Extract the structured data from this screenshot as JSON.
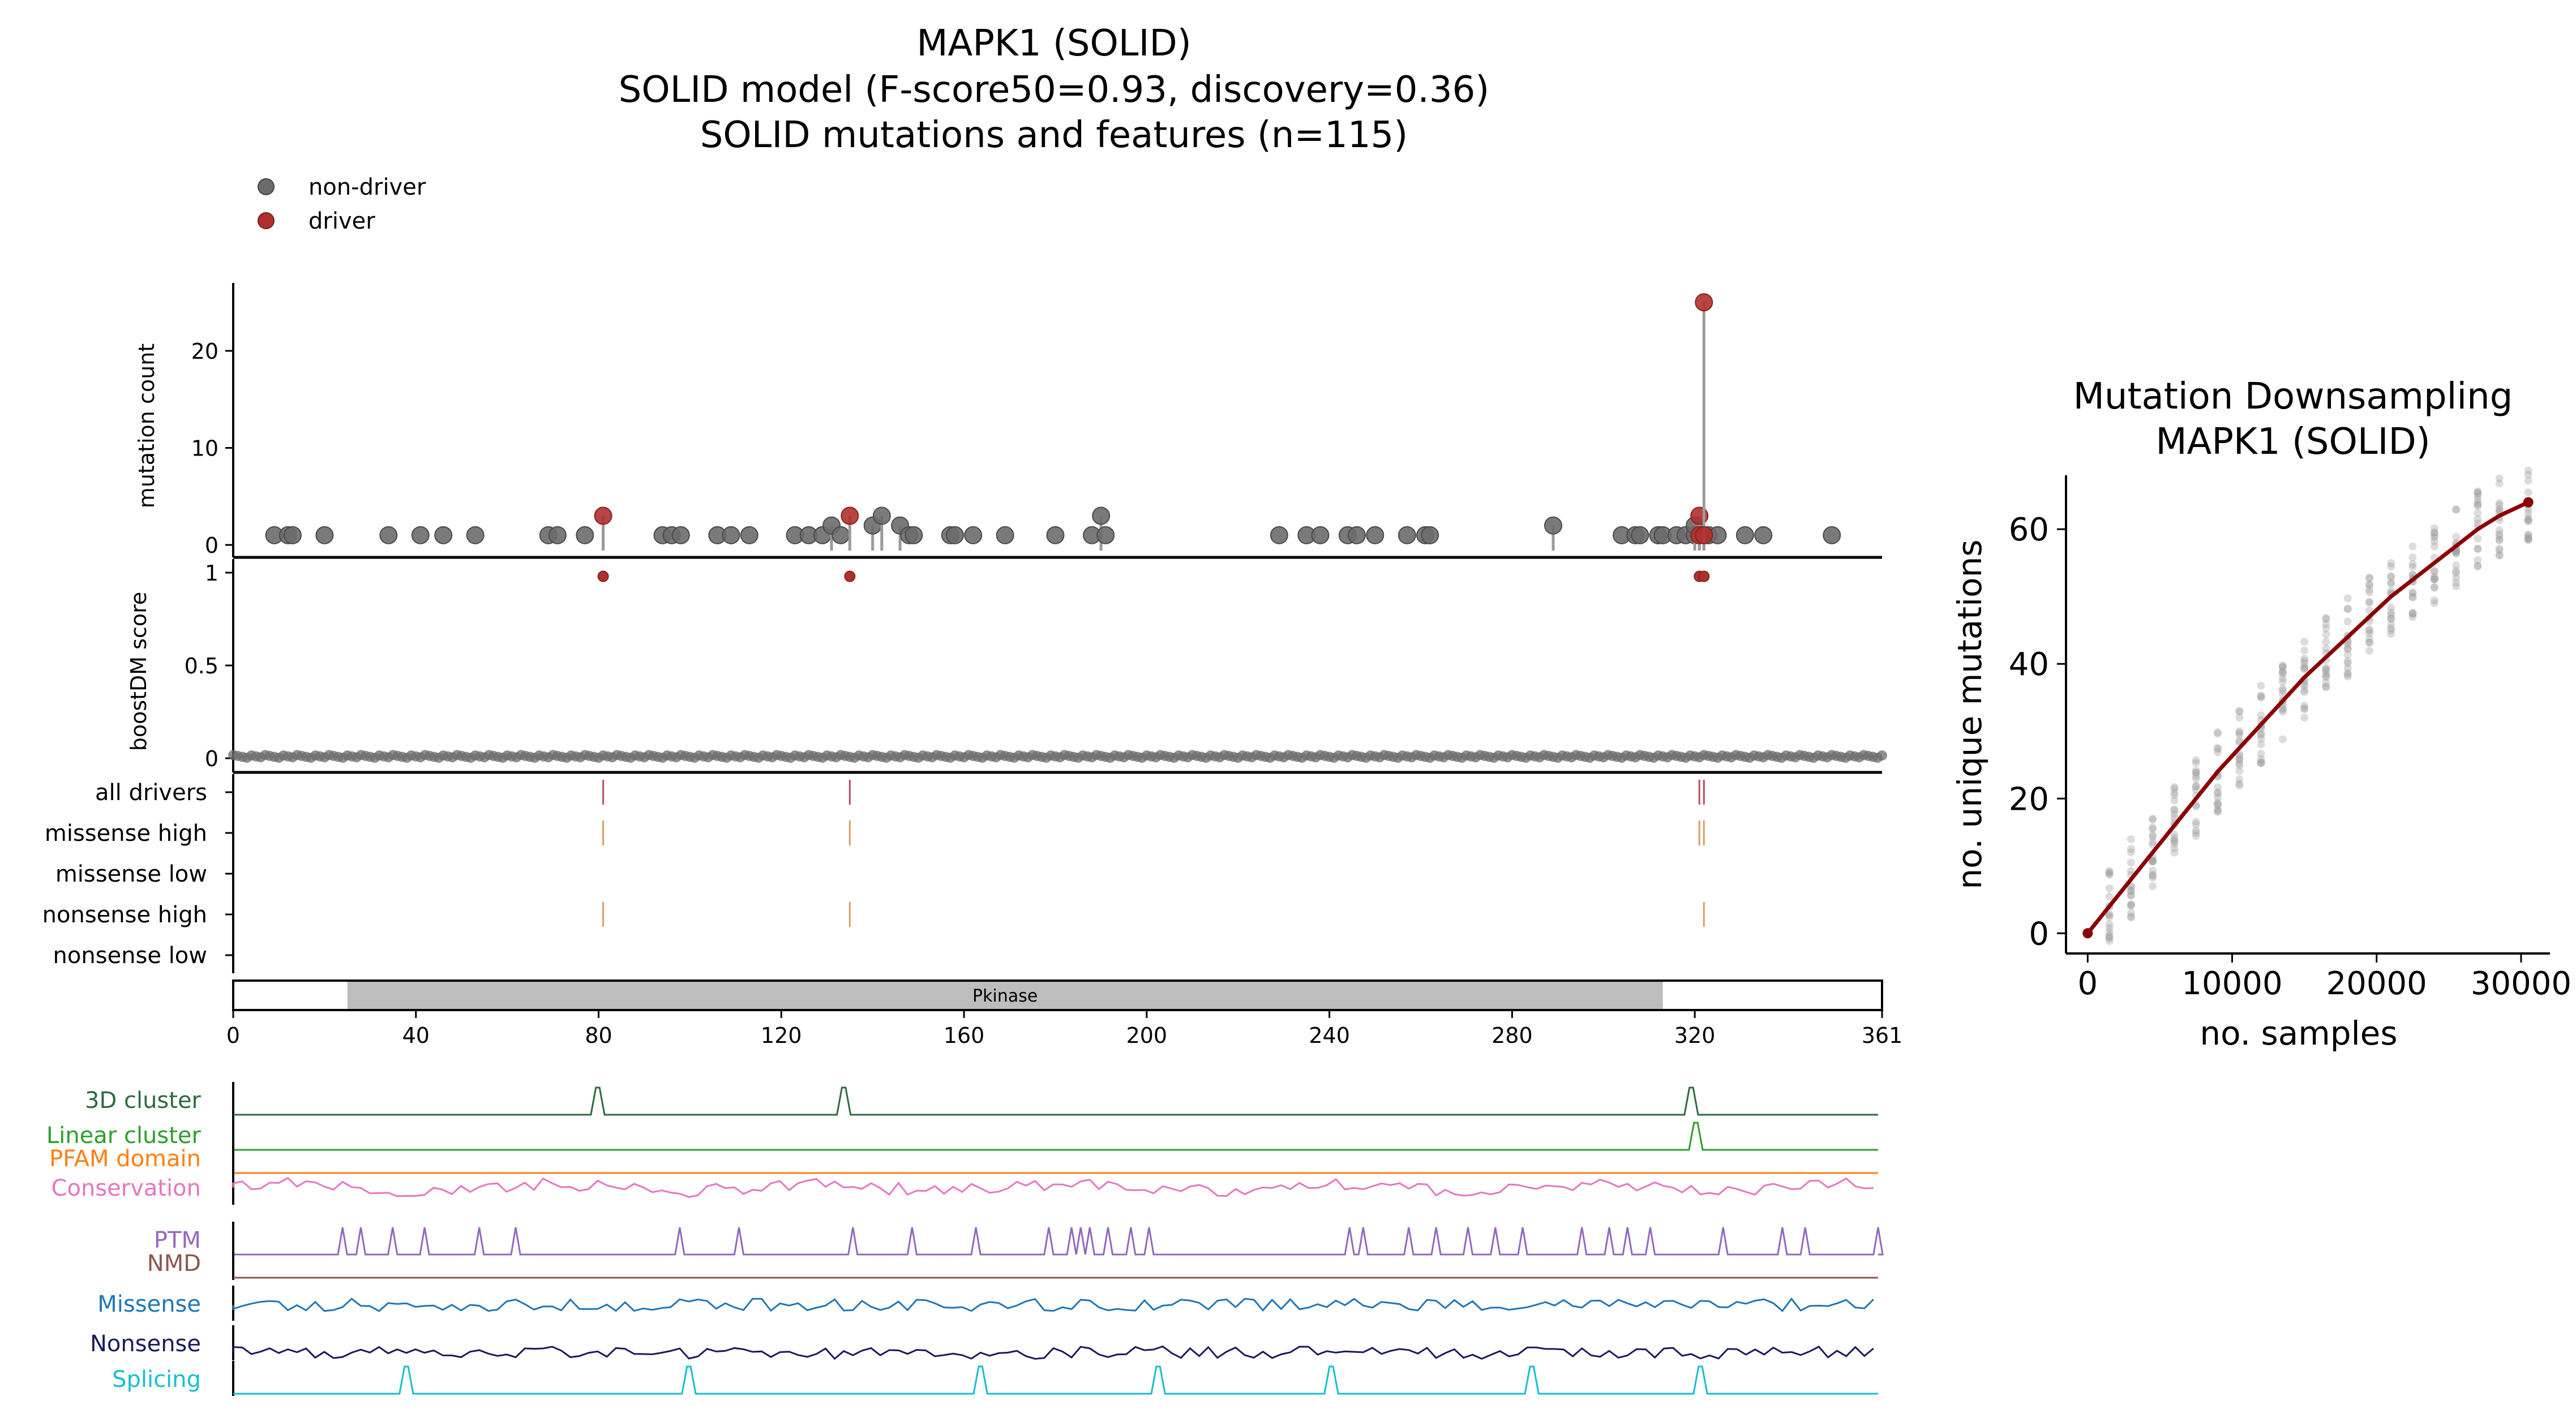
{
  "figure": {
    "title_lines": [
      "MAPK1 (SOLID)",
      "SOLID model (F-score50=0.93, discovery=0.36)",
      "SOLID mutations and features (n=115)"
    ]
  },
  "chart_data": [
    {
      "type": "scatter",
      "subtype": "lollipop",
      "ylabel": "mutation count",
      "ylim": [
        0,
        27
      ],
      "yticks": [
        "0",
        "10",
        "20"
      ],
      "legend": {
        "placement": "top-left",
        "entries": [
          {
            "label": "non-driver",
            "color": "#6b6b6b"
          },
          {
            "label": "driver",
            "color": "#b03030"
          }
        ]
      },
      "x_range": [
        0,
        361
      ],
      "points": [
        [
          9,
          1,
          0
        ],
        [
          12,
          1,
          0
        ],
        [
          13,
          1,
          0
        ],
        [
          20,
          1,
          0
        ],
        [
          34,
          1,
          0
        ],
        [
          41,
          1,
          0
        ],
        [
          46,
          1,
          0
        ],
        [
          53,
          1,
          0
        ],
        [
          69,
          1,
          0
        ],
        [
          71,
          1,
          0
        ],
        [
          77,
          1,
          0
        ],
        [
          81,
          3,
          1
        ],
        [
          94,
          1,
          0
        ],
        [
          96,
          1,
          0
        ],
        [
          98,
          1,
          0
        ],
        [
          106,
          1,
          0
        ],
        [
          109,
          1,
          0
        ],
        [
          113,
          1,
          0
        ],
        [
          123,
          1,
          0
        ],
        [
          126,
          1,
          0
        ],
        [
          129,
          1,
          0
        ],
        [
          131,
          2,
          0
        ],
        [
          133,
          1,
          0
        ],
        [
          135,
          3,
          1
        ],
        [
          140,
          2,
          0
        ],
        [
          142,
          3,
          0
        ],
        [
          146,
          2,
          0
        ],
        [
          148,
          1,
          0
        ],
        [
          149,
          1,
          0
        ],
        [
          157,
          1,
          0
        ],
        [
          158,
          1,
          0
        ],
        [
          162,
          1,
          0
        ],
        [
          169,
          1,
          0
        ],
        [
          180,
          1,
          0
        ],
        [
          188,
          1,
          0
        ],
        [
          190,
          3,
          0
        ],
        [
          191,
          1,
          0
        ],
        [
          229,
          1,
          0
        ],
        [
          235,
          1,
          0
        ],
        [
          238,
          1,
          0
        ],
        [
          244,
          1,
          0
        ],
        [
          246,
          1,
          0
        ],
        [
          250,
          1,
          0
        ],
        [
          257,
          1,
          0
        ],
        [
          261,
          1,
          0
        ],
        [
          262,
          1,
          0
        ],
        [
          289,
          2,
          0
        ],
        [
          304,
          1,
          0
        ],
        [
          307,
          1,
          0
        ],
        [
          308,
          1,
          0
        ],
        [
          312,
          1,
          0
        ],
        [
          313,
          1,
          0
        ],
        [
          316,
          1,
          0
        ],
        [
          318,
          1,
          0
        ],
        [
          320,
          1,
          0
        ],
        [
          320,
          2,
          0
        ],
        [
          321,
          3,
          1
        ],
        [
          321,
          1,
          1
        ],
        [
          322,
          25,
          1
        ],
        [
          322,
          1,
          1
        ],
        [
          323,
          1,
          0
        ],
        [
          325,
          1,
          0
        ],
        [
          331,
          1,
          0
        ],
        [
          335,
          1,
          0
        ],
        [
          350,
          1,
          0
        ]
      ]
    },
    {
      "type": "scatter",
      "ylabel": "boostDM score",
      "ylim": [
        0,
        1
      ],
      "yticks": [
        "0",
        "0.5",
        "1"
      ],
      "baseline_value": 0.01,
      "drivers": [
        {
          "x": 81,
          "y": 0.98
        },
        {
          "x": 135,
          "y": 0.98
        },
        {
          "x": 321,
          "y": 0.98
        },
        {
          "x": 322,
          "y": 0.98
        }
      ]
    },
    {
      "type": "table",
      "rows": [
        {
          "label": "all drivers",
          "positions": [
            81,
            135,
            321,
            322
          ]
        },
        {
          "label": "missense high",
          "positions": [
            81,
            135,
            321,
            322
          ]
        },
        {
          "label": "missense low",
          "positions": []
        },
        {
          "label": "nonsense high",
          "positions": [
            81,
            135,
            322
          ]
        },
        {
          "label": "nonsense low",
          "positions": []
        }
      ],
      "domain": {
        "name": "Pkinase",
        "start": 25,
        "end": 313
      },
      "xticks": [
        "0",
        "40",
        "80",
        "120",
        "160",
        "200",
        "240",
        "280",
        "320",
        "361"
      ],
      "xtick_values": [
        0,
        40,
        80,
        120,
        160,
        200,
        240,
        280,
        320,
        361
      ]
    },
    {
      "type": "line",
      "x_range": [
        0,
        361
      ],
      "tracks": [
        {
          "label": "3D cluster",
          "color": "#2d6a3e",
          "kind": "peaks",
          "peaks": [
            80,
            134,
            320
          ]
        },
        {
          "label": "Linear cluster",
          "color": "#2ca02c",
          "kind": "peaks",
          "peaks": [
            321
          ]
        },
        {
          "label": "PFAM domain",
          "color": "#ff7f0e",
          "kind": "flat"
        },
        {
          "label": "Conservation",
          "color": "#e377c2",
          "kind": "noise",
          "level": 0.55
        },
        {
          "label": "PTM",
          "color": "#9467bd",
          "kind": "spikes",
          "peaks": [
            24,
            28,
            35,
            42,
            54,
            62,
            98,
            111,
            136,
            149,
            163,
            179,
            184,
            186,
            188,
            192,
            197,
            201,
            245,
            248,
            258,
            264,
            271,
            277,
            283,
            296,
            302,
            306,
            311,
            327,
            340,
            345,
            361
          ]
        },
        {
          "label": "NMD",
          "color": "#8c564b",
          "kind": "flat"
        },
        {
          "label": "Missense",
          "color": "#1f77b4",
          "kind": "noise",
          "level": 0.5
        },
        {
          "label": "Nonsense",
          "color": "#1a1a5e",
          "kind": "noise",
          "level": 0.2
        },
        {
          "label": "Splicing",
          "color": "#17becf",
          "kind": "peaks",
          "peaks": [
            38,
            100,
            164,
            203,
            241,
            285,
            322
          ]
        }
      ]
    },
    {
      "type": "scatter",
      "title": "Mutation Downsampling\nMAPK1 (SOLID)",
      "xlabel": "no. samples",
      "ylabel": "no. unique mutations",
      "xlim": [
        -1500,
        32000
      ],
      "ylim": [
        -3,
        68
      ],
      "xticks": [
        0,
        10000,
        20000,
        30000
      ],
      "yticks": [
        0,
        20,
        40,
        60
      ],
      "curve_color": "#8b0000",
      "curve": [
        [
          0,
          0
        ],
        [
          1500,
          4
        ],
        [
          3000,
          8
        ],
        [
          4500,
          12
        ],
        [
          6000,
          16
        ],
        [
          7500,
          20
        ],
        [
          9000,
          24
        ],
        [
          10500,
          27.5
        ],
        [
          12000,
          31
        ],
        [
          13500,
          34.5
        ],
        [
          15000,
          38
        ],
        [
          16500,
          41
        ],
        [
          18000,
          44
        ],
        [
          19500,
          47
        ],
        [
          21000,
          50
        ],
        [
          22500,
          52.5
        ],
        [
          24000,
          55
        ],
        [
          25500,
          57.5
        ],
        [
          27000,
          60
        ],
        [
          28500,
          62
        ],
        [
          30500,
          64
        ]
      ]
    }
  ],
  "labels": {
    "legend_nondriver": "non-driver",
    "legend_driver": "driver",
    "domain_name": "Pkinase"
  }
}
